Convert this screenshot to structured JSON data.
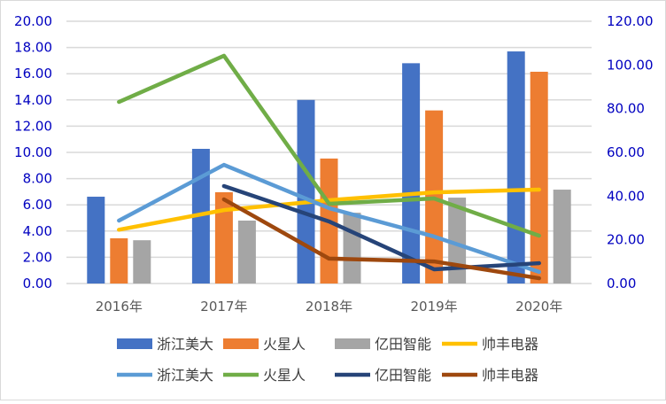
{
  "chart_data": {
    "type": "bar+line",
    "categories": [
      "2016年",
      "2017年",
      "2018年",
      "2019年",
      "2020年"
    ],
    "left_axis": {
      "min": 0,
      "max": 20,
      "step": 2,
      "ticks": [
        "0.00",
        "2.00",
        "4.00",
        "6.00",
        "8.00",
        "10.00",
        "12.00",
        "14.00",
        "16.00",
        "18.00",
        "20.00"
      ]
    },
    "right_axis": {
      "min": 0,
      "max": 120,
      "step": 20,
      "ticks": [
        "0.00",
        "20.00",
        "40.00",
        "60.00",
        "80.00",
        "100.00",
        "120.00"
      ]
    },
    "grid": true,
    "legend_position": "bottom",
    "bar_series": [
      {
        "name": "浙江美大",
        "color": "#4472C4",
        "values": [
          6.62,
          10.27,
          14.0,
          16.8,
          17.7
        ]
      },
      {
        "name": "火星人",
        "color": "#ED7D31",
        "values": [
          3.45,
          6.96,
          9.53,
          13.2,
          16.15
        ]
      },
      {
        "name": "亿田智能",
        "color": "#A5A5A5",
        "values": [
          3.3,
          4.8,
          5.4,
          6.55,
          7.16
        ]
      }
    ],
    "left_line_series": [
      {
        "name": "帅丰电器",
        "color": "#FFC000",
        "values": [
          4.1,
          5.6,
          6.35,
          6.95,
          7.16
        ]
      }
    ],
    "right_line_series": [
      {
        "name": "浙江美大",
        "color": "#5B9BD5",
        "values": [
          28.8,
          54.3,
          34.5,
          21.5,
          5.3
        ]
      },
      {
        "name": "火星人",
        "color": "#70AD47",
        "values": [
          83.1,
          104.2,
          36.5,
          38.9,
          21.9
        ]
      },
      {
        "name": "亿田智能",
        "color": "#264478",
        "values": [
          null,
          44.6,
          28.4,
          6.5,
          9.3
        ]
      },
      {
        "name": "帅丰电器",
        "color": "#9E480E",
        "values": [
          null,
          38.5,
          11.4,
          10.1,
          2.4
        ]
      }
    ],
    "axis_label_color": "#0000C0"
  }
}
